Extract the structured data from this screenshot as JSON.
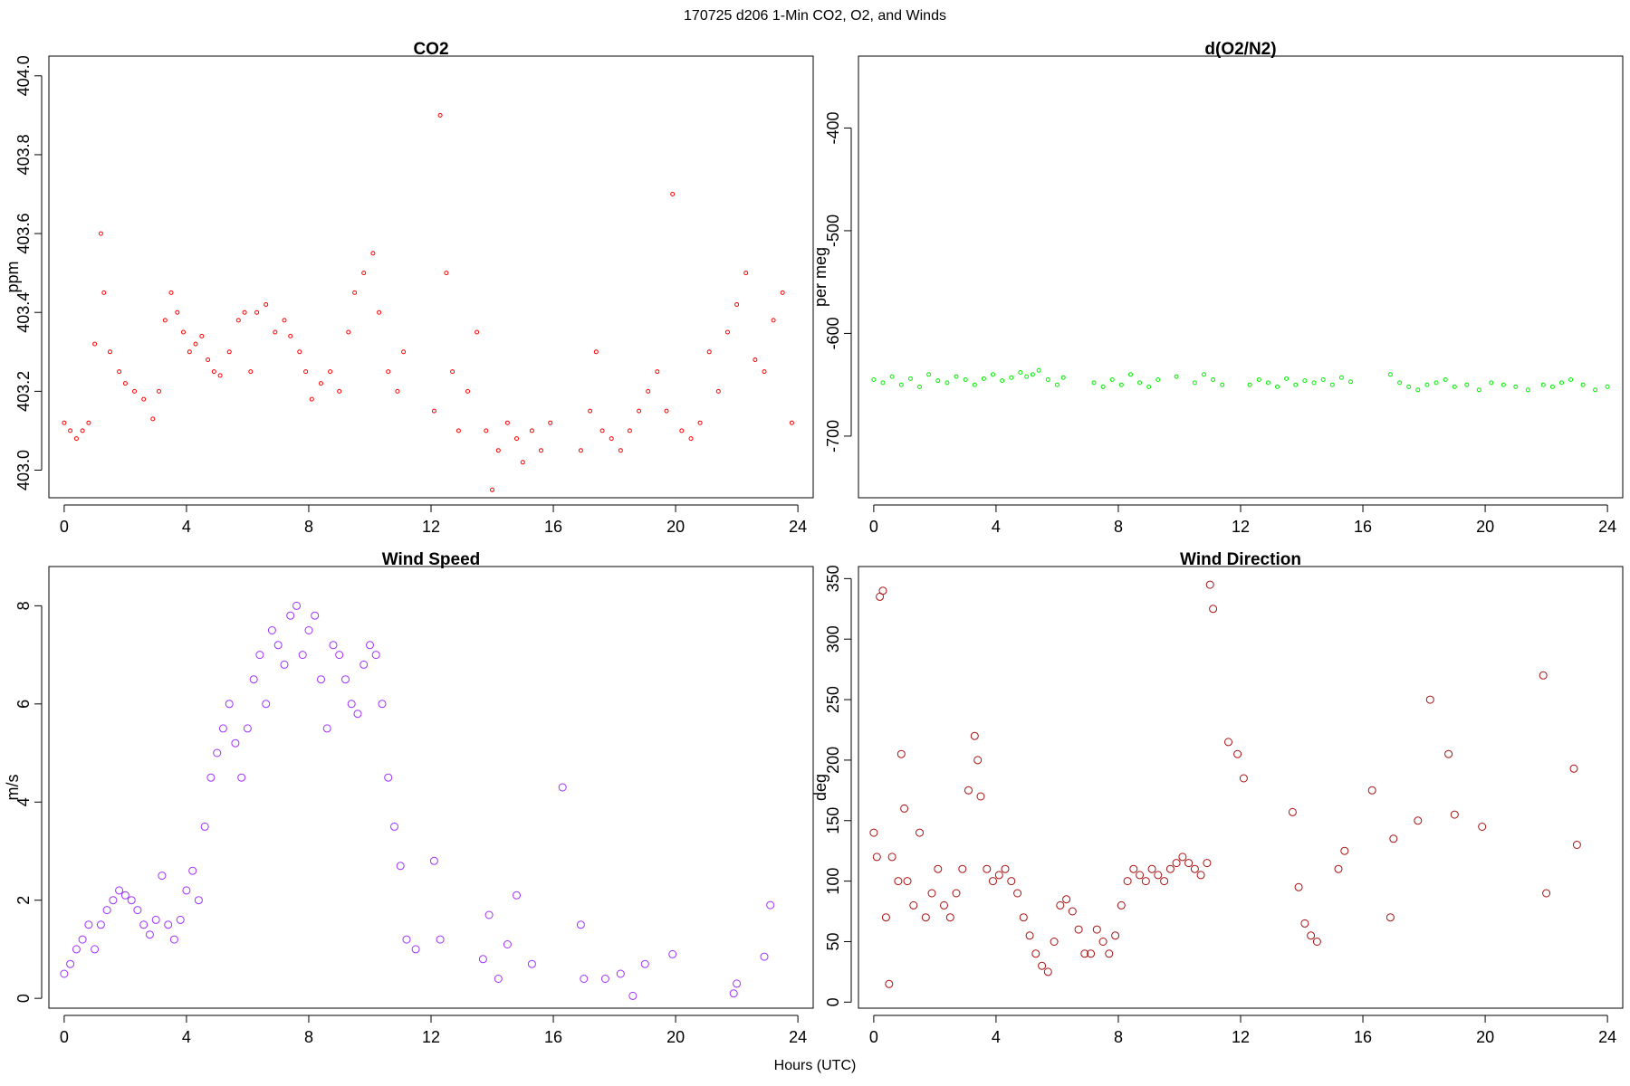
{
  "suptitle": "170725   d206   1-Min CO2, O2, and Winds",
  "xlabel_global": "Hours (UTC)",
  "chart_data": [
    {
      "id": "co2",
      "type": "scatter",
      "title": "CO2",
      "xlabel": "",
      "ylabel": "ppm",
      "xlim": [
        -0.5,
        24.5
      ],
      "ylim": [
        402.93,
        404.05
      ],
      "xticks": [
        0,
        4,
        8,
        12,
        16,
        20,
        24
      ],
      "yticks": [
        403.0,
        403.2,
        403.4,
        403.6,
        403.8,
        404.0
      ],
      "yticklabels": [
        "403.0",
        "403.2",
        "403.4",
        "403.6",
        "403.8",
        "404.0"
      ],
      "color": "#ff0000",
      "marker_size": 2,
      "series": [
        {
          "x": [
            0.0,
            0.2,
            0.4,
            0.6,
            0.8,
            1.0,
            1.2,
            1.3,
            1.5,
            1.8,
            2.0,
            2.3,
            2.6,
            2.9,
            3.1,
            3.3,
            3.5,
            3.7,
            3.9,
            4.1,
            4.3,
            4.5,
            4.7,
            4.9,
            5.1,
            5.4,
            5.7,
            5.9,
            6.1,
            6.3,
            6.6,
            6.9,
            7.2,
            7.4,
            7.7,
            7.9,
            8.1,
            8.4,
            8.7,
            9.0,
            9.3,
            9.5,
            9.8,
            10.1,
            10.3,
            10.6,
            10.9,
            11.1,
            12.1,
            12.3,
            12.5,
            12.7,
            12.9,
            13.2,
            13.5,
            13.8,
            14.0,
            14.2,
            14.5,
            14.8,
            15.0,
            15.3,
            15.6,
            15.9,
            16.9,
            17.2,
            17.4,
            17.6,
            17.9,
            18.2,
            18.5,
            18.8,
            19.1,
            19.4,
            19.7,
            19.9,
            20.2,
            20.5,
            20.8,
            21.1,
            21.4,
            21.7,
            22.0,
            22.3,
            22.6,
            22.9,
            23.2,
            23.5,
            23.8
          ],
          "y": [
            403.12,
            403.1,
            403.08,
            403.1,
            403.12,
            403.32,
            403.6,
            403.45,
            403.3,
            403.25,
            403.22,
            403.2,
            403.18,
            403.13,
            403.2,
            403.38,
            403.45,
            403.4,
            403.35,
            403.3,
            403.32,
            403.34,
            403.28,
            403.25,
            403.24,
            403.3,
            403.38,
            403.4,
            403.25,
            403.4,
            403.42,
            403.35,
            403.38,
            403.34,
            403.3,
            403.25,
            403.18,
            403.22,
            403.25,
            403.2,
            403.35,
            403.45,
            403.5,
            403.55,
            403.4,
            403.25,
            403.2,
            403.3,
            403.15,
            403.9,
            403.5,
            403.25,
            403.1,
            403.2,
            403.35,
            403.1,
            402.95,
            403.05,
            403.12,
            403.08,
            403.02,
            403.1,
            403.05,
            403.12,
            403.05,
            403.15,
            403.3,
            403.1,
            403.08,
            403.05,
            403.1,
            403.15,
            403.2,
            403.25,
            403.15,
            403.7,
            403.1,
            403.08,
            403.12,
            403.3,
            403.2,
            403.35,
            403.42,
            403.5,
            403.28,
            403.25,
            403.38,
            403.45,
            403.12
          ]
        }
      ]
    },
    {
      "id": "o2",
      "type": "scatter",
      "title": "d(O2/N2)",
      "xlabel": "",
      "ylabel": "per meg",
      "xlim": [
        -0.5,
        24.5
      ],
      "ylim": [
        -760,
        -330
      ],
      "xticks": [
        0,
        4,
        8,
        12,
        16,
        20,
        24
      ],
      "yticks": [
        -700,
        -600,
        -500,
        -400
      ],
      "yticklabels": [
        "-700",
        "-600",
        "-500",
        "-400"
      ],
      "color": "#00ee00",
      "marker_size": 2,
      "series": [
        {
          "x": [
            0.0,
            0.3,
            0.6,
            0.9,
            1.2,
            1.5,
            1.8,
            2.1,
            2.4,
            2.7,
            3.0,
            3.3,
            3.6,
            3.9,
            4.2,
            4.5,
            4.8,
            5.0,
            5.2,
            5.4,
            5.7,
            6.0,
            6.2,
            7.2,
            7.5,
            7.8,
            8.1,
            8.4,
            8.7,
            9.0,
            9.3,
            9.9,
            10.5,
            10.8,
            11.1,
            11.4,
            12.3,
            12.6,
            12.9,
            13.2,
            13.5,
            13.8,
            14.1,
            14.4,
            14.7,
            15.0,
            15.3,
            15.6,
            16.9,
            17.2,
            17.5,
            17.8,
            18.1,
            18.4,
            18.7,
            19.0,
            19.4,
            19.8,
            20.2,
            20.6,
            21.0,
            21.4,
            21.9,
            22.2,
            22.5,
            22.8,
            23.2,
            23.6,
            24.0
          ],
          "y": [
            -645,
            -648,
            -642,
            -650,
            -644,
            -652,
            -640,
            -646,
            -648,
            -642,
            -645,
            -650,
            -644,
            -640,
            -646,
            -643,
            -638,
            -642,
            -640,
            -636,
            -645,
            -650,
            -643,
            -648,
            -652,
            -645,
            -650,
            -640,
            -648,
            -652,
            -645,
            -642,
            -648,
            -640,
            -645,
            -650,
            -650,
            -645,
            -648,
            -652,
            -644,
            -650,
            -646,
            -648,
            -645,
            -650,
            -643,
            -647,
            -640,
            -648,
            -652,
            -655,
            -650,
            -648,
            -645,
            -652,
            -650,
            -655,
            -648,
            -650,
            -652,
            -655,
            -650,
            -652,
            -648,
            -645,
            -650,
            -655,
            -652
          ]
        }
      ]
    },
    {
      "id": "wspd",
      "type": "scatter",
      "title": "Wind Speed",
      "xlabel": "",
      "ylabel": "m/s",
      "xlim": [
        -0.5,
        24.5
      ],
      "ylim": [
        -0.2,
        8.8
      ],
      "xticks": [
        0,
        4,
        8,
        12,
        16,
        20,
        24
      ],
      "yticks": [
        0,
        2,
        4,
        6,
        8
      ],
      "yticklabels": [
        "0",
        "2",
        "4",
        "6",
        "8"
      ],
      "color": "#a030ff",
      "marker_size": 4,
      "series": [
        {
          "x": [
            0.0,
            0.2,
            0.4,
            0.6,
            0.8,
            1.0,
            1.2,
            1.4,
            1.6,
            1.8,
            2.0,
            2.2,
            2.4,
            2.6,
            2.8,
            3.0,
            3.2,
            3.4,
            3.6,
            3.8,
            4.0,
            4.2,
            4.4,
            4.6,
            4.8,
            5.0,
            5.2,
            5.4,
            5.6,
            5.8,
            6.0,
            6.2,
            6.4,
            6.6,
            6.8,
            7.0,
            7.2,
            7.4,
            7.6,
            7.8,
            8.0,
            8.2,
            8.4,
            8.6,
            8.8,
            9.0,
            9.2,
            9.4,
            9.6,
            9.8,
            10.0,
            10.2,
            10.4,
            10.6,
            10.8,
            11.0,
            11.2,
            11.5,
            12.1,
            12.3,
            13.7,
            13.9,
            14.2,
            14.5,
            14.8,
            15.3,
            16.3,
            16.9,
            17.0,
            17.7,
            18.2,
            18.6,
            19.0,
            19.9,
            21.9,
            22.0,
            22.9,
            23.1
          ],
          "y": [
            0.5,
            0.7,
            1.0,
            1.2,
            1.5,
            1.0,
            1.5,
            1.8,
            2.0,
            2.2,
            2.1,
            2.0,
            1.8,
            1.5,
            1.3,
            1.6,
            2.5,
            1.5,
            1.2,
            1.6,
            2.2,
            2.6,
            2.0,
            3.5,
            4.5,
            5.0,
            5.5,
            6.0,
            5.2,
            4.5,
            5.5,
            6.5,
            7.0,
            6.0,
            7.5,
            7.2,
            6.8,
            7.8,
            8.0,
            7.0,
            7.5,
            7.8,
            6.5,
            5.5,
            7.2,
            7.0,
            6.5,
            6.0,
            5.8,
            6.8,
            7.2,
            7.0,
            6.0,
            4.5,
            3.5,
            2.7,
            1.2,
            1.0,
            2.8,
            1.2,
            0.8,
            1.7,
            0.4,
            1.1,
            2.1,
            0.7,
            4.3,
            1.5,
            0.4,
            0.4,
            0.5,
            0.05,
            0.7,
            0.9,
            0.1,
            0.3,
            0.85,
            1.9
          ]
        }
      ]
    },
    {
      "id": "wdir",
      "type": "scatter",
      "title": "Wind Direction",
      "xlabel": "",
      "ylabel": "deg",
      "xlim": [
        -0.5,
        24.5
      ],
      "ylim": [
        -5,
        360
      ],
      "xticks": [
        0,
        4,
        8,
        12,
        16,
        20,
        24
      ],
      "yticks": [
        0,
        50,
        100,
        150,
        200,
        250,
        300,
        350
      ],
      "yticklabels": [
        "0",
        "50",
        "100",
        "150",
        "200",
        "250",
        "300",
        "350"
      ],
      "color": "#aa1010",
      "marker_size": 4,
      "series": [
        {
          "x": [
            0.0,
            0.1,
            0.2,
            0.3,
            0.4,
            0.5,
            0.6,
            0.8,
            0.9,
            1.0,
            1.1,
            1.3,
            1.5,
            1.7,
            1.9,
            2.1,
            2.3,
            2.5,
            2.7,
            2.9,
            3.1,
            3.3,
            3.4,
            3.5,
            3.7,
            3.9,
            4.1,
            4.3,
            4.5,
            4.7,
            4.9,
            5.1,
            5.3,
            5.5,
            5.7,
            5.9,
            6.1,
            6.3,
            6.5,
            6.7,
            6.9,
            7.1,
            7.3,
            7.5,
            7.7,
            7.9,
            8.1,
            8.3,
            8.5,
            8.7,
            8.9,
            9.1,
            9.3,
            9.5,
            9.7,
            9.9,
            10.1,
            10.3,
            10.5,
            10.7,
            10.9,
            11.0,
            11.1,
            11.6,
            11.9,
            12.1,
            13.7,
            13.9,
            14.1,
            14.3,
            14.5,
            15.2,
            15.4,
            16.3,
            16.9,
            17.0,
            17.8,
            18.2,
            18.8,
            19.0,
            19.9,
            21.9,
            22.0,
            22.9,
            23.0
          ],
          "y": [
            140,
            120,
            335,
            340,
            70,
            15,
            120,
            100,
            205,
            160,
            100,
            80,
            140,
            70,
            90,
            110,
            80,
            70,
            90,
            110,
            175,
            220,
            200,
            170,
            110,
            100,
            105,
            110,
            100,
            90,
            70,
            55,
            40,
            30,
            25,
            50,
            80,
            85,
            75,
            60,
            40,
            40,
            60,
            50,
            40,
            55,
            80,
            100,
            110,
            105,
            100,
            110,
            105,
            100,
            110,
            115,
            120,
            115,
            110,
            105,
            115,
            345,
            325,
            215,
            205,
            185,
            157,
            95,
            65,
            55,
            50,
            110,
            125,
            175,
            70,
            135,
            150,
            250,
            205,
            155,
            145,
            270,
            90,
            193,
            130
          ]
        }
      ]
    }
  ]
}
